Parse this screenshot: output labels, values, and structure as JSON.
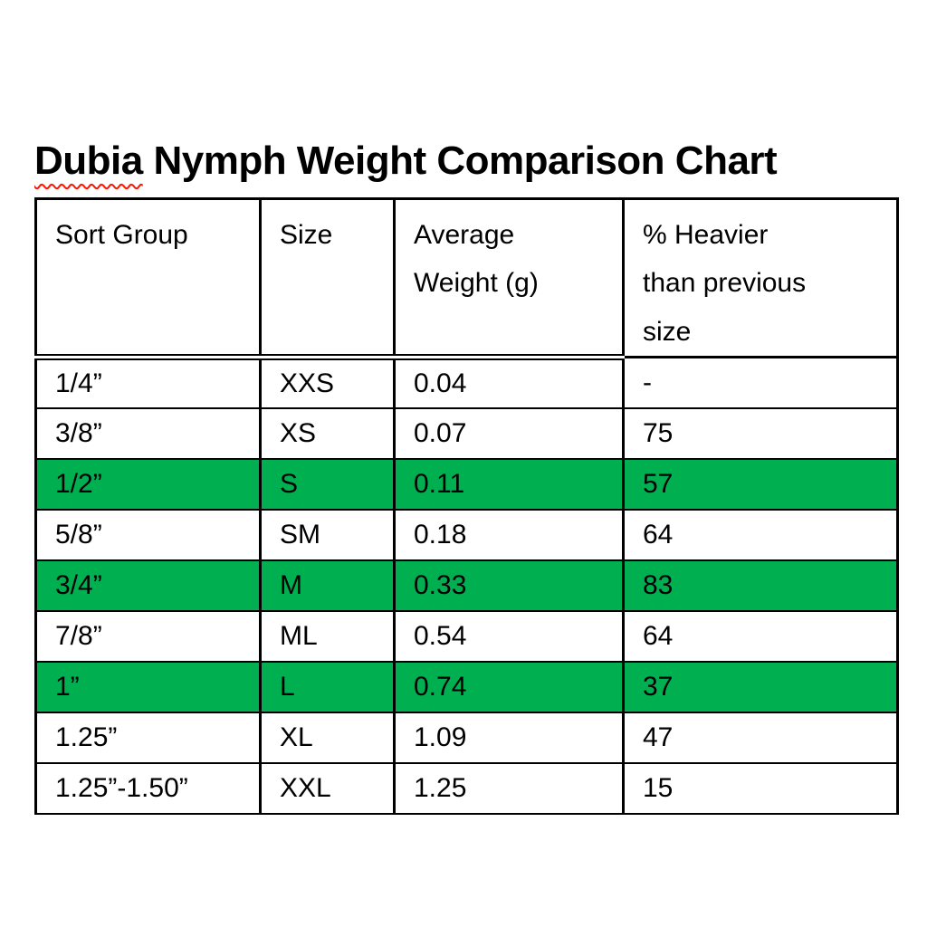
{
  "title": {
    "word": "Dubia",
    "rest": " Nymph Weight Comparison Chart"
  },
  "table": {
    "headers": [
      {
        "label": "Sort Group",
        "lines": [
          "Sort Group"
        ]
      },
      {
        "label": "Size",
        "lines": [
          "Size"
        ]
      },
      {
        "label": "Average Weight (g)",
        "lines": [
          "Average",
          "Weight (g)"
        ]
      },
      {
        "label": "% Heavier than previous size",
        "lines": [
          "% Heavier",
          "than previous",
          "size"
        ]
      }
    ],
    "rows": [
      {
        "sort_group": "1/4”",
        "size": "XXS",
        "avg_weight_g": "0.04",
        "pct_heavier": "-",
        "highlight": false
      },
      {
        "sort_group": "3/8”",
        "size": "XS",
        "avg_weight_g": "0.07",
        "pct_heavier": "75",
        "highlight": false
      },
      {
        "sort_group": "1/2”",
        "size": "S",
        "avg_weight_g": "0.11",
        "pct_heavier": "57",
        "highlight": true
      },
      {
        "sort_group": "5/8”",
        "size": "SM",
        "avg_weight_g": "0.18",
        "pct_heavier": "64",
        "highlight": false
      },
      {
        "sort_group": "3/4”",
        "size": "M",
        "avg_weight_g": "0.33",
        "pct_heavier": "83",
        "highlight": true
      },
      {
        "sort_group": "7/8”",
        "size": "ML",
        "avg_weight_g": "0.54",
        "pct_heavier": "64",
        "highlight": false
      },
      {
        "sort_group": "1”",
        "size": "L",
        "avg_weight_g": "0.74",
        "pct_heavier": "37",
        "highlight": true
      },
      {
        "sort_group": "1.25”",
        "size": "XL",
        "avg_weight_g": "1.09",
        "pct_heavier": "47",
        "highlight": false
      },
      {
        "sort_group": "1.25”-1.50”",
        "size": "XXL",
        "avg_weight_g": "1.25",
        "pct_heavier": "15",
        "highlight": false
      }
    ]
  },
  "colors": {
    "highlight_green": "#00B050",
    "squiggle_red": "#FF1500",
    "text": "#000000",
    "background": "#FFFFFF"
  }
}
